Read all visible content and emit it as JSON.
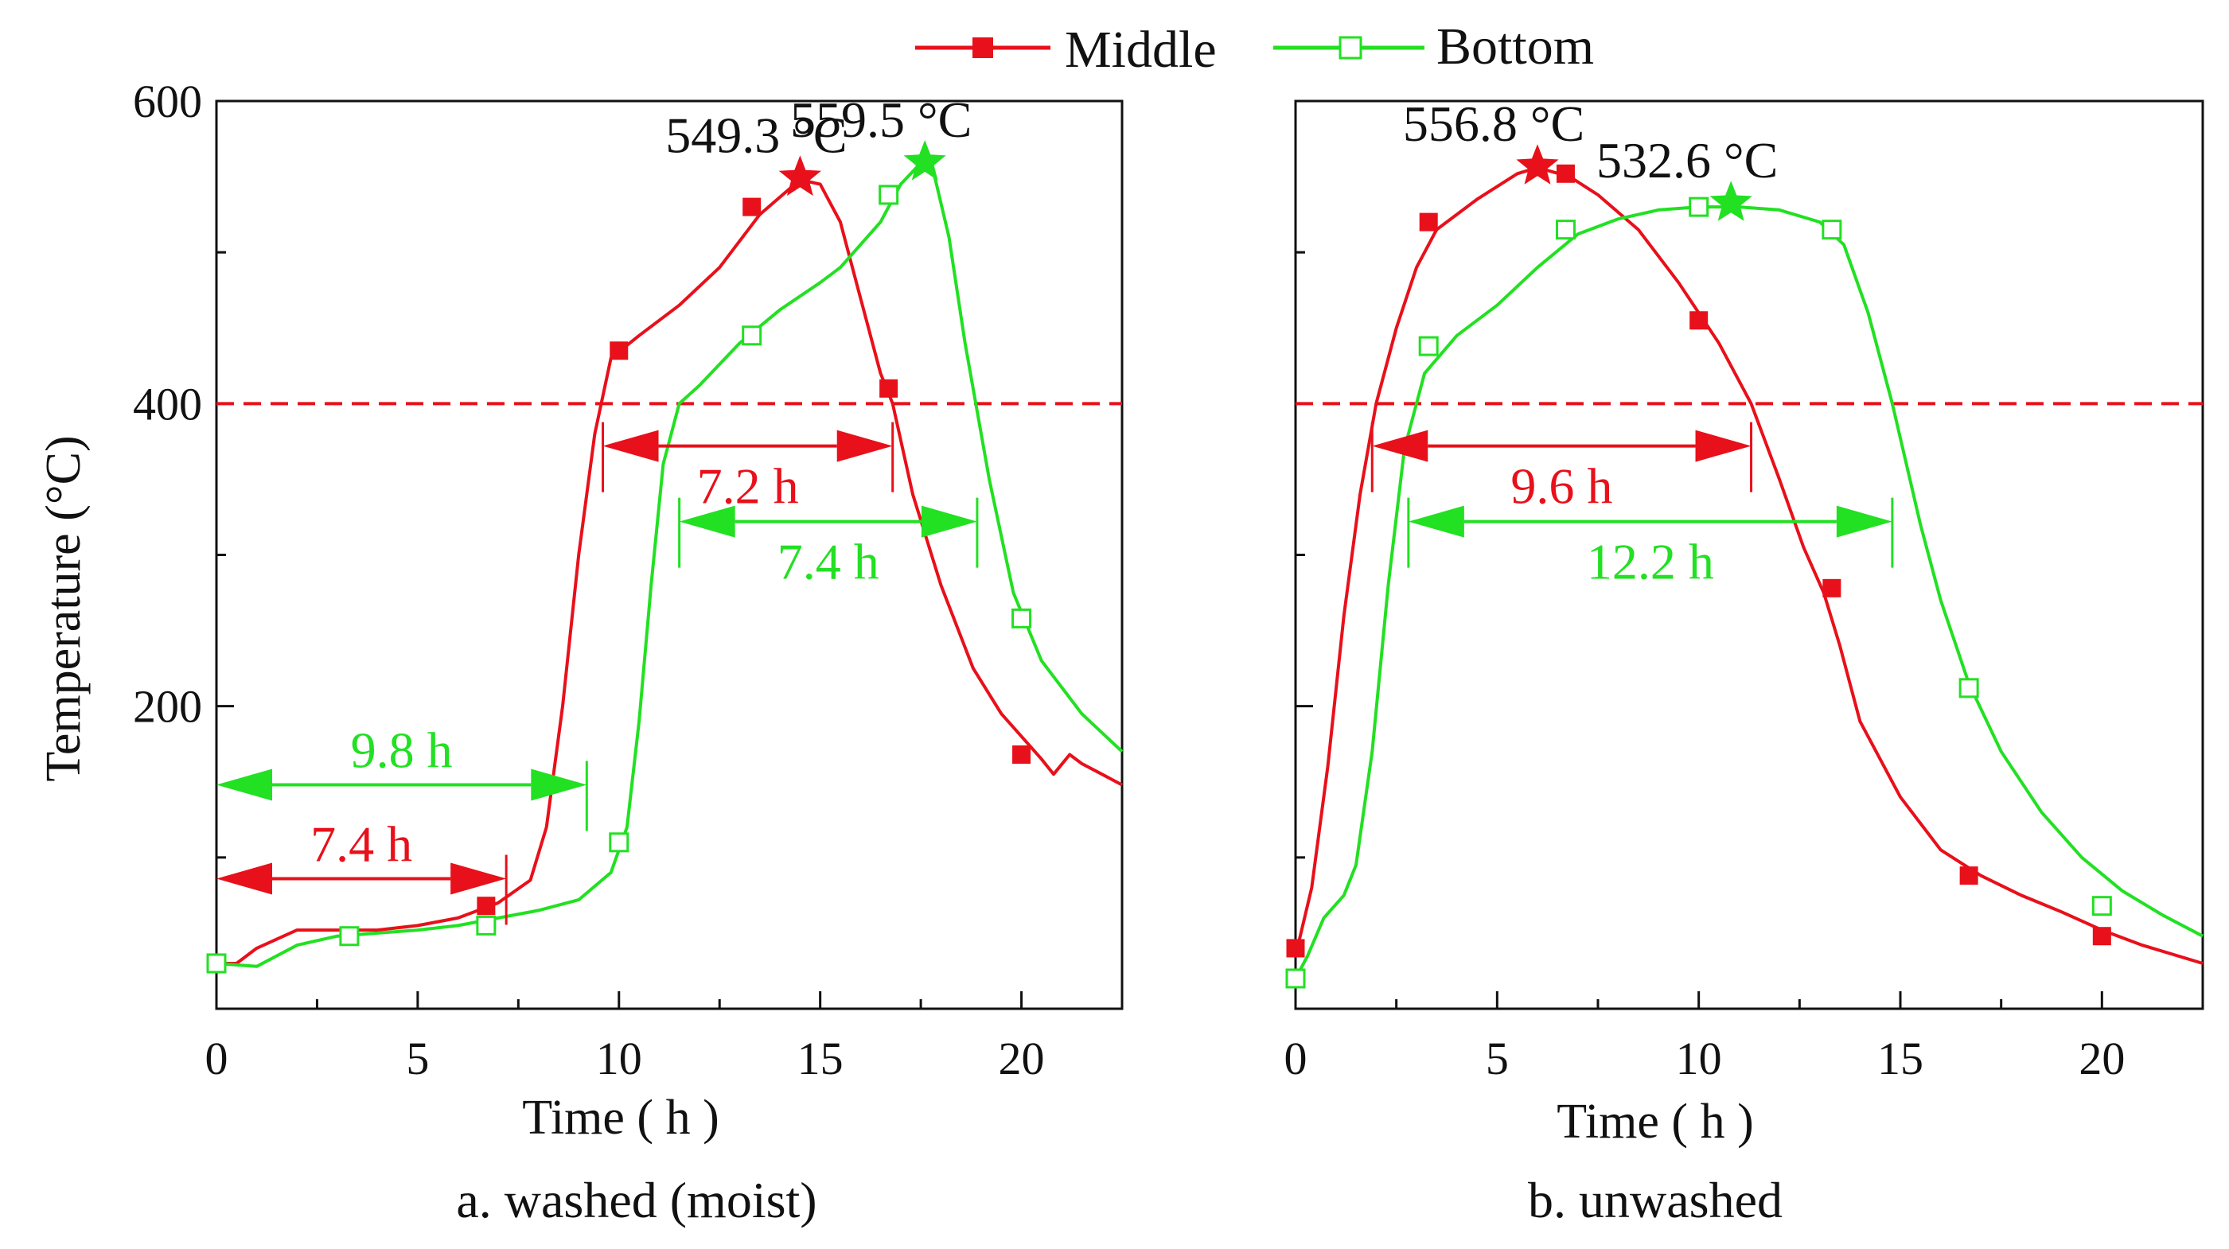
{
  "legend": {
    "middle": "Middle",
    "bottom": "Bottom"
  },
  "colors": {
    "middle": "#e8101a",
    "bottom": "#22e022",
    "axis": "#111111"
  },
  "chart_data": [
    {
      "type": "line",
      "caption": "a. washed (moist)",
      "xlabel": "Time ( h )",
      "ylabel": "Temperature (°C)",
      "xlim": [
        0,
        22.5
      ],
      "ylim": [
        0,
        600
      ],
      "xticks": [
        0,
        5,
        10,
        15,
        20
      ],
      "yticks": [
        200,
        400,
        600
      ],
      "threshold": 400,
      "series": [
        {
          "name": "Middle",
          "line": [
            [
              0,
              30
            ],
            [
              0.5,
              30
            ],
            [
              1,
              40
            ],
            [
              2,
              52
            ],
            [
              3,
              52
            ],
            [
              4,
              52
            ],
            [
              5,
              55
            ],
            [
              6,
              60
            ],
            [
              7,
              70
            ],
            [
              7.8,
              85
            ],
            [
              8.2,
              120
            ],
            [
              8.6,
              200
            ],
            [
              9,
              300
            ],
            [
              9.4,
              380
            ],
            [
              9.8,
              430
            ],
            [
              10.5,
              445
            ],
            [
              11.5,
              465
            ],
            [
              12.5,
              490
            ],
            [
              13.5,
              525
            ],
            [
              14.5,
              548
            ],
            [
              15,
              545
            ],
            [
              15.5,
              520
            ],
            [
              16,
              470
            ],
            [
              16.5,
              420
            ],
            [
              16.8,
              400
            ],
            [
              17.3,
              340
            ],
            [
              18,
              280
            ],
            [
              18.8,
              225
            ],
            [
              19.5,
              195
            ],
            [
              20,
              180
            ],
            [
              20.5,
              165
            ],
            [
              20.8,
              155
            ],
            [
              21.2,
              168
            ],
            [
              21.5,
              162
            ],
            [
              22,
              155
            ],
            [
              22.5,
              148
            ]
          ],
          "markers": [
            [
              3.3,
              48
            ],
            [
              6.7,
              68
            ],
            [
              10,
              435
            ],
            [
              13.3,
              530
            ],
            [
              16.7,
              410
            ],
            [
              20,
              168
            ]
          ],
          "peak": {
            "x": 14.5,
            "y": 549.3,
            "label": "549.3 °C"
          }
        },
        {
          "name": "Bottom",
          "line": [
            [
              0,
              30
            ],
            [
              1,
              28
            ],
            [
              2,
              42
            ],
            [
              3,
              48
            ],
            [
              4,
              50
            ],
            [
              5,
              52
            ],
            [
              6,
              55
            ],
            [
              7,
              60
            ],
            [
              8,
              65
            ],
            [
              9,
              72
            ],
            [
              9.8,
              90
            ],
            [
              10.2,
              120
            ],
            [
              10.5,
              190
            ],
            [
              10.8,
              280
            ],
            [
              11.1,
              360
            ],
            [
              11.5,
              400
            ],
            [
              12,
              412
            ],
            [
              13,
              440
            ],
            [
              14,
              462
            ],
            [
              15,
              480
            ],
            [
              15.5,
              490
            ],
            [
              16.5,
              520
            ],
            [
              17,
              545
            ],
            [
              17.5,
              559
            ],
            [
              17.8,
              555
            ],
            [
              18.2,
              510
            ],
            [
              18.6,
              440
            ],
            [
              19.2,
              350
            ],
            [
              19.8,
              275
            ],
            [
              20.5,
              230
            ],
            [
              21.5,
              195
            ],
            [
              22.5,
              170
            ]
          ],
          "markers": [
            [
              0,
              30
            ],
            [
              3.3,
              48
            ],
            [
              6.7,
              55
            ],
            [
              10,
              110
            ],
            [
              13.3,
              445
            ],
            [
              16.7,
              538
            ],
            [
              20,
              258
            ]
          ],
          "peak": {
            "x": 17.6,
            "y": 559.5,
            "label": "559.5 °C"
          }
        }
      ],
      "annotations": [
        {
          "series": "Middle",
          "label": "7.2 h",
          "y": 372,
          "x1": 9.6,
          "x2": 16.8
        },
        {
          "series": "Bottom",
          "label": "7.4 h",
          "y": 322,
          "x1": 11.5,
          "x2": 18.9
        },
        {
          "series": "Bottom",
          "label": "9.8 h",
          "y": 148,
          "x1": 0,
          "x2": 9.2
        },
        {
          "series": "Middle",
          "label": "7.4 h",
          "y": 86,
          "x1": 0,
          "x2": 7.2
        }
      ]
    },
    {
      "type": "line",
      "caption": "b. unwashed",
      "xlabel": "Time ( h )",
      "ylabel": "",
      "xlim": [
        0,
        22.5
      ],
      "ylim": [
        0,
        600
      ],
      "xticks": [
        0,
        5,
        10,
        15,
        20
      ],
      "yticks": [],
      "threshold": 400,
      "series": [
        {
          "name": "Middle",
          "line": [
            [
              0,
              35
            ],
            [
              0.4,
              80
            ],
            [
              0.8,
              160
            ],
            [
              1.2,
              260
            ],
            [
              1.6,
              340
            ],
            [
              2,
              400
            ],
            [
              2.5,
              450
            ],
            [
              3,
              490
            ],
            [
              3.5,
              515
            ],
            [
              4.5,
              535
            ],
            [
              5.5,
              552
            ],
            [
              6,
              556
            ],
            [
              6.8,
              550
            ],
            [
              7.5,
              538
            ],
            [
              8.5,
              515
            ],
            [
              9.5,
              480
            ],
            [
              10.5,
              440
            ],
            [
              11.3,
              400
            ],
            [
              12,
              350
            ],
            [
              12.6,
              305
            ],
            [
              13.1,
              275
            ],
            [
              13.5,
              240
            ],
            [
              14,
              190
            ],
            [
              15,
              140
            ],
            [
              16,
              105
            ],
            [
              17,
              88
            ],
            [
              18,
              75
            ],
            [
              19,
              64
            ],
            [
              20,
              52
            ],
            [
              21,
              42
            ],
            [
              22.5,
              30
            ]
          ],
          "markers": [
            [
              0,
              40
            ],
            [
              3.3,
              520
            ],
            [
              6.7,
              552
            ],
            [
              10,
              455
            ],
            [
              13.3,
              278
            ],
            [
              16.7,
              88
            ],
            [
              20,
              48
            ]
          ],
          "peak": {
            "x": 6,
            "y": 556.8,
            "label": "556.8 °C"
          }
        },
        {
          "name": "Bottom",
          "line": [
            [
              0,
              20
            ],
            [
              0.3,
              35
            ],
            [
              0.7,
              60
            ],
            [
              1.2,
              75
            ],
            [
              1.5,
              95
            ],
            [
              1.9,
              170
            ],
            [
              2.3,
              280
            ],
            [
              2.7,
              370
            ],
            [
              3.2,
              420
            ],
            [
              4,
              445
            ],
            [
              5,
              465
            ],
            [
              6,
              490
            ],
            [
              7,
              512
            ],
            [
              8,
              522
            ],
            [
              9,
              528
            ],
            [
              10,
              530
            ],
            [
              11,
              530
            ],
            [
              12,
              528
            ],
            [
              13,
              520
            ],
            [
              13.6,
              505
            ],
            [
              14.2,
              460
            ],
            [
              14.8,
              400
            ],
            [
              15.5,
              320
            ],
            [
              16,
              270
            ],
            [
              16.7,
              215
            ],
            [
              17.5,
              170
            ],
            [
              18.5,
              130
            ],
            [
              19.5,
              100
            ],
            [
              20.5,
              78
            ],
            [
              21.5,
              62
            ],
            [
              22.5,
              48
            ]
          ],
          "markers": [
            [
              0,
              20
            ],
            [
              3.3,
              438
            ],
            [
              6.7,
              515
            ],
            [
              10,
              530
            ],
            [
              13.3,
              515
            ],
            [
              16.7,
              212
            ],
            [
              20,
              68
            ]
          ],
          "peak": {
            "x": 10.8,
            "y": 532.6,
            "label": "532.6 °C"
          }
        }
      ],
      "annotations": [
        {
          "series": "Middle",
          "label": "9.6 h",
          "y": 372,
          "x1": 1.9,
          "x2": 11.3
        },
        {
          "series": "Bottom",
          "label": "12.2 h",
          "y": 322,
          "x1": 2.8,
          "x2": 14.8
        }
      ]
    }
  ]
}
